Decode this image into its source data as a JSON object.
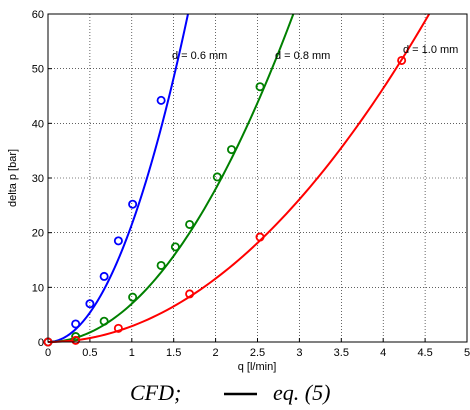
{
  "chart_data": {
    "type": "line",
    "xlabel": "q [l/min]",
    "ylabel": "delta p [bar]",
    "xlim": [
      0,
      5
    ],
    "ylim": [
      0,
      60
    ],
    "xticks": [
      "0",
      "0.5",
      "1",
      "1.5",
      "2",
      "2.5",
      "3",
      "3.5",
      "4",
      "4.5",
      "5"
    ],
    "yticks": [
      "0",
      "10",
      "20",
      "30",
      "40",
      "50",
      "60"
    ],
    "grid": true,
    "series": [
      {
        "name": "d = 0.6 mm",
        "color": "#0000ff",
        "k": 21.5,
        "markers": {
          "x": [
            0.0,
            0.33,
            0.5,
            0.67,
            0.84,
            1.01,
            1.35
          ],
          "y": [
            0.0,
            3.3,
            7.0,
            12.0,
            18.5,
            25.2,
            44.2
          ]
        }
      },
      {
        "name": "d = 0.8 mm",
        "color": "#008000",
        "k": 7.0,
        "markers": {
          "x": [
            0.0,
            0.33,
            0.67,
            1.01,
            1.35,
            1.52,
            1.69,
            2.02,
            2.19,
            2.53
          ],
          "y": [
            0.0,
            1.0,
            3.8,
            8.2,
            14.0,
            17.4,
            21.5,
            30.2,
            35.2,
            46.7
          ]
        }
      },
      {
        "name": "d = 1.0 mm",
        "color": "#ff0000",
        "k": 2.9,
        "markers": {
          "x": [
            0.0,
            0.33,
            0.84,
            1.69,
            2.53,
            4.22
          ],
          "y": [
            0.0,
            0.3,
            2.5,
            8.8,
            19.2,
            51.5
          ]
        }
      }
    ],
    "legend_text": [
      "CFD;",
      "eq. (5)"
    ]
  }
}
